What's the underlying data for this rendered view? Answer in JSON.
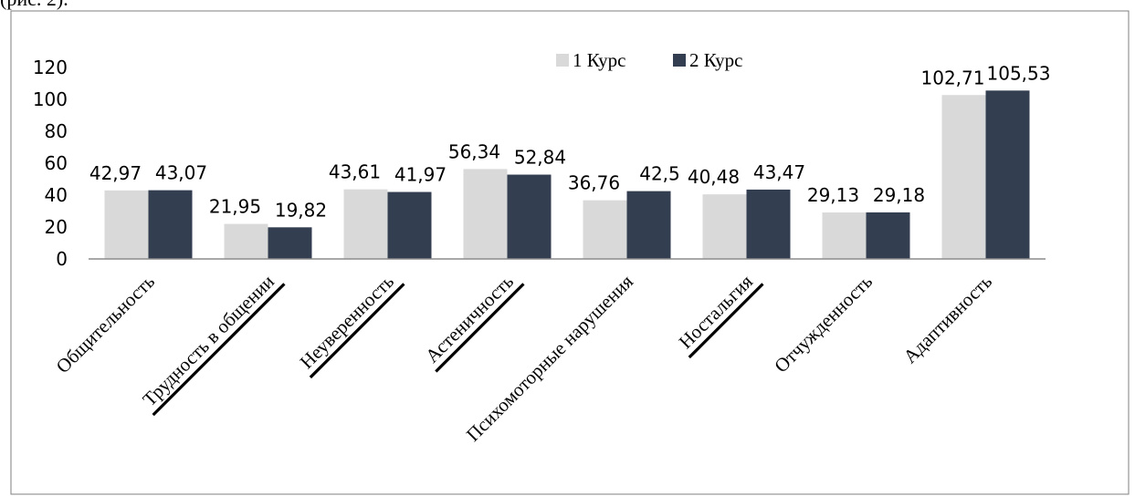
{
  "caption_fragment": "(рис. 2).",
  "chart_data": {
    "type": "bar",
    "categories": [
      "Общительность",
      "Трудность в общении",
      "Неуверенность",
      "Астеничность",
      "Психомоторные нарушения",
      "Ностальгия",
      "Отчужденность",
      "Адаптивность"
    ],
    "series": [
      {
        "name": "1 Курс",
        "color": "#d9d9d9",
        "values": [
          42.97,
          21.95,
          43.61,
          56.34,
          36.76,
          40.48,
          29.13,
          102.71
        ],
        "labels": [
          "42,97",
          "21,95",
          "43,61",
          "56,34",
          "36,76",
          "40,48",
          "29,13",
          "102,71"
        ]
      },
      {
        "name": "2 Курс",
        "color": "#333e50",
        "values": [
          43.07,
          19.82,
          41.97,
          52.84,
          42.5,
          43.47,
          29.18,
          105.53
        ],
        "labels": [
          "43,07",
          "19,82",
          "41,97",
          "52,84",
          "42,5",
          "43,47",
          "29,18",
          "105,53"
        ]
      }
    ],
    "ylim": [
      0,
      120
    ],
    "yticks": [
      "0",
      "20",
      "40",
      "60",
      "80",
      "100",
      "120"
    ],
    "grid": false,
    "legend_position": "top-center",
    "underlined_categories": [
      false,
      true,
      true,
      true,
      false,
      true,
      false,
      false
    ]
  }
}
